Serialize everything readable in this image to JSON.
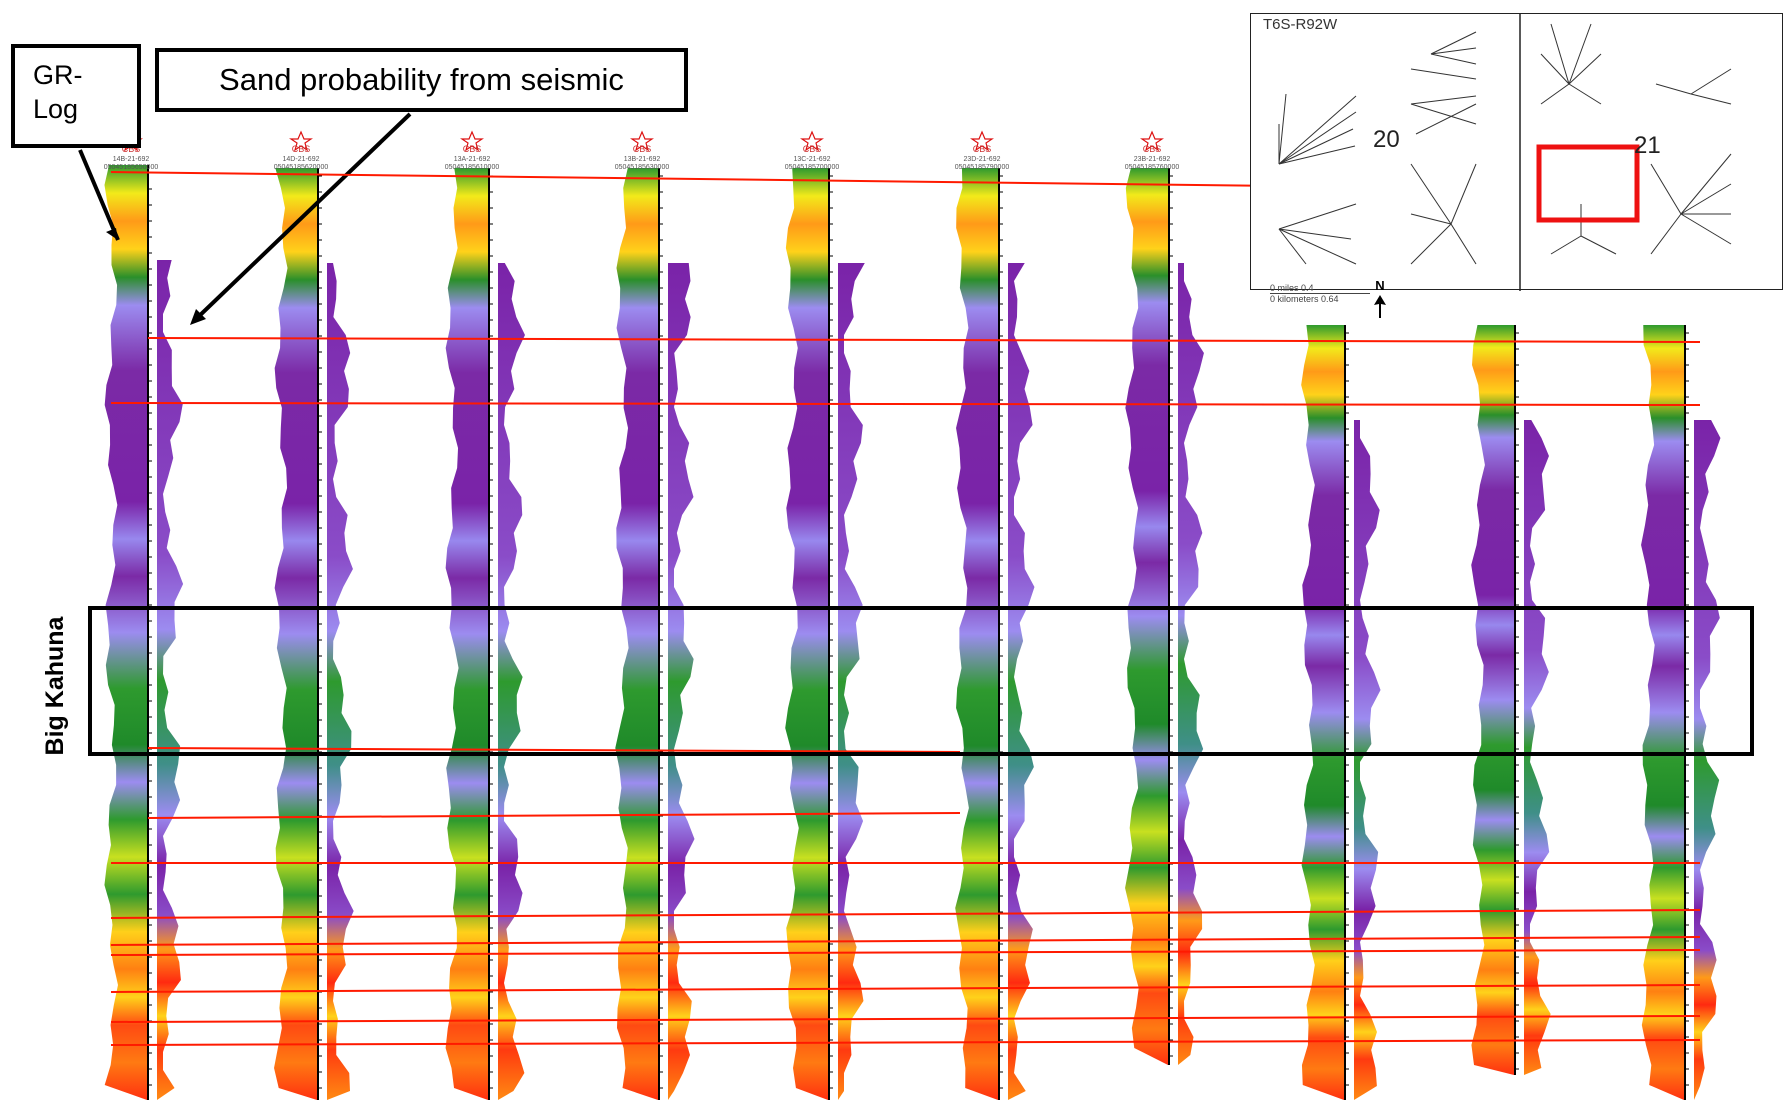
{
  "labels": {
    "gr_log": "GR-\nLog",
    "sand_probability": "Sand probability from seismic",
    "zone": "Big Kahuna"
  },
  "inset_map": {
    "township": "T6S-R92W",
    "section_left": "20",
    "section_right": "21",
    "scale_miles": "0   miles   0.4",
    "scale_km": "0 kilometers 0.64",
    "north": "N"
  },
  "wells": [
    {
      "symbol": "CBS",
      "name": "14B-21-692",
      "api": "05045185650000"
    },
    {
      "symbol": "CBS",
      "name": "14D-21-692",
      "api": "05045185620000"
    },
    {
      "symbol": "CBS",
      "name": "13A-21-692",
      "api": "05045185610000"
    },
    {
      "symbol": "CBS",
      "name": "13B-21-692",
      "api": "05045185630000"
    },
    {
      "symbol": "CBS",
      "name": "13C-21-692",
      "api": "05045185700000"
    },
    {
      "symbol": "CBS",
      "name": "23D-21-692",
      "api": "05045185790000"
    },
    {
      "symbol": "CBS",
      "name": "23B-21-692",
      "api": "05045185760000"
    }
  ],
  "colors": {
    "correlation_line": "#ff1a00",
    "highlight_box": "#ee1111",
    "frame": "#000000",
    "purple": "#7a22a8",
    "lavender": "#9a8cf0",
    "green": "#2e9a2e",
    "yellow": "#f0ec1a",
    "orange": "#ff8a12",
    "red": "#ff2a10"
  }
}
